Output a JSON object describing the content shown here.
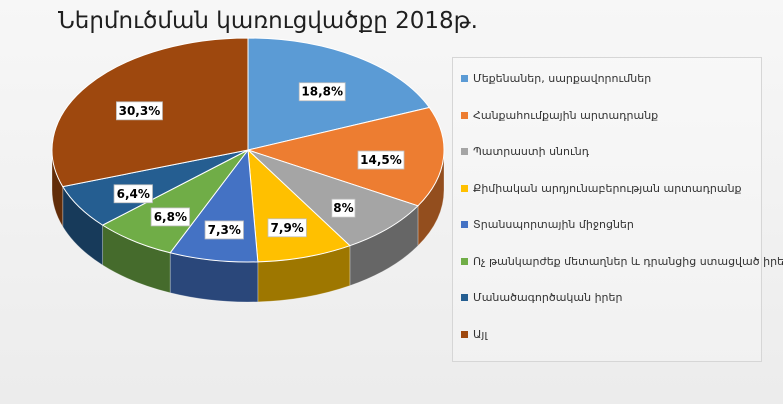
{
  "chart_data": {
    "type": "pie",
    "title": "Ներմուծման կառուցվածքը 2018թ.",
    "categories": [
      "Մեքենաներ, սարքավորումներ",
      "Հանքահումքային արտադրանք",
      "Պատրաստի սնունդ",
      "Քիմիական արդյունաբերության արտադրանք",
      "Տրանսպորտային միջոցներ",
      "Ոչ թանկարժեք մետաղներ և դրանցից ստացված իրեր",
      "Մանածագործական իրեր",
      "Այլ"
    ],
    "values": [
      18.8,
      14.5,
      8,
      7.9,
      7.3,
      6.8,
      6.4,
      30.3
    ],
    "data_labels": [
      "18,8%",
      "14,5%",
      "8%",
      "7,9%",
      "7,3%",
      "6,8%",
      "6,4%",
      "30,3%"
    ],
    "colors": [
      "#5b9bd5",
      "#ed7d31",
      "#a5a5a5",
      "#ffc000",
      "#4472c4",
      "#70ad47",
      "#255e91",
      "#9e480e"
    ],
    "legend_position": "right",
    "style": "3d-pie"
  }
}
